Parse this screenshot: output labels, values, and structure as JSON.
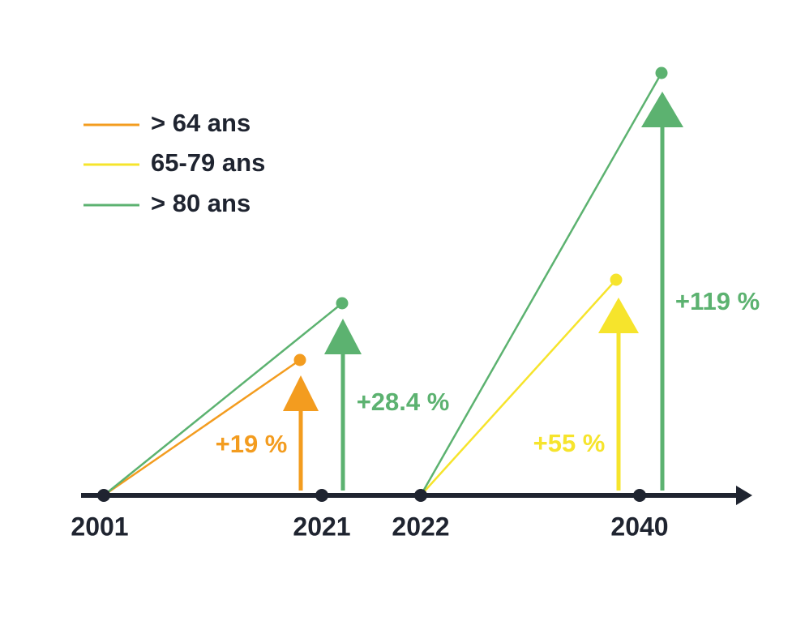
{
  "legend": [
    {
      "label": "> 64 ans",
      "color": "#f39c1f"
    },
    {
      "label": "65-79 ans",
      "color": "#f6e42c"
    },
    {
      "label": "> 80 ans",
      "color": "#5cb270"
    }
  ],
  "timeline": [
    "2001",
    "2021",
    "2022",
    "2040"
  ],
  "annotations": [
    {
      "text": "+19 %",
      "color": "#f39c1f"
    },
    {
      "text": "+28.4 %",
      "color": "#5cb270"
    },
    {
      "text": "+55 %",
      "color": "#f6e42c"
    },
    {
      "text": "+119 %",
      "color": "#5cb270"
    }
  ]
}
